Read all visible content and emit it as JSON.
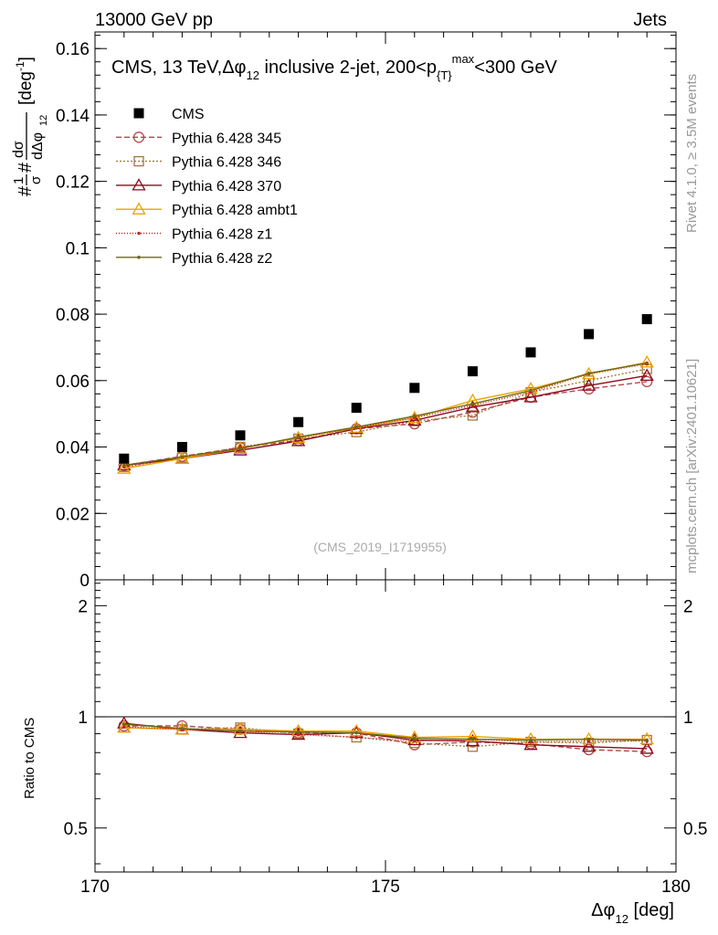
{
  "header": {
    "left": "13000 GeV pp",
    "right": "Jets",
    "side_top": "Rivet 4.1.0, ≥ 3.5M events",
    "side_bottom": "mcplots.cern.ch [arXiv:2401.10621]",
    "watermark": "(CMS_2019_I1719955)"
  },
  "chart_data": {
    "type": "line",
    "title_parts": {
      "pre": "CMS, 13 TeV,",
      "phi": "Δφ",
      "phi_sub": "12",
      "mid": " inclusive 2-jet, 200<p",
      "sub_T": "{T}",
      "sup_max": "max",
      "post": "<300 GeV"
    },
    "xlabel": "Δφ",
    "xlabel_sub": "12",
    "xlabel_unit": " [deg]",
    "ylabel_parts": {
      "hash1": "#",
      "one": "1",
      "sigma": "σ",
      "hash2": "#",
      "dsigma": "dσ",
      "dphi": "dΔφ",
      "dphi_sub": "12",
      "unit": "[deg",
      "unit_sup": "-1",
      "unit_close": "]"
    },
    "ratio_ylabel": "Ratio to CMS",
    "xlim": [
      170,
      180
    ],
    "ylim": [
      0,
      0.165
    ],
    "ratio_ylim": [
      0.38,
      2.35
    ],
    "x_ticks": [
      170,
      175,
      180
    ],
    "y_ticks": [
      0,
      0.02,
      0.04,
      0.06,
      0.08,
      0.1,
      0.12,
      0.14,
      0.16
    ],
    "y_tick_labels": [
      "0",
      "0.02",
      "0.04",
      "0.06",
      "0.08",
      "0.1",
      "0.12",
      "0.14",
      "0.16"
    ],
    "ratio_ticks": [
      0.5,
      1,
      2
    ],
    "ratio_tick_labels": [
      "0.5",
      "1",
      "2"
    ],
    "x": [
      170.5,
      171.5,
      172.5,
      173.5,
      174.5,
      175.5,
      176.5,
      177.5,
      178.5,
      179.5
    ],
    "data": {
      "name": "CMS",
      "values": [
        0.0365,
        0.04,
        0.0435,
        0.0475,
        0.0518,
        0.0578,
        0.0628,
        0.0685,
        0.074,
        0.0785
      ]
    },
    "series": [
      {
        "name": "Pythia 6.428 345",
        "color": "#b5474b",
        "dash": "6,3",
        "marker": "circle",
        "values": [
          0.0345,
          0.0372,
          0.0398,
          0.042,
          0.0455,
          0.047,
          0.0505,
          0.055,
          0.0575,
          0.0597
        ]
      },
      {
        "name": "Pythia 6.428 346",
        "color": "#a37a3b",
        "dash": "2,2",
        "marker": "square",
        "values": [
          0.034,
          0.0368,
          0.04,
          0.0425,
          0.0445,
          0.0478,
          0.0495,
          0.0565,
          0.06,
          0.0635
        ]
      },
      {
        "name": "Pythia 6.428 370",
        "color": "#8b0a1e",
        "dash": "",
        "marker": "triangle",
        "values": [
          0.0345,
          0.0365,
          0.039,
          0.0418,
          0.0455,
          0.048,
          0.052,
          0.055,
          0.0585,
          0.0615
        ]
      },
      {
        "name": "Pythia 6.428 ambt1",
        "color": "#f0a000",
        "dash": "",
        "marker": "triangle",
        "values": [
          0.0335,
          0.0365,
          0.0395,
          0.0428,
          0.0458,
          0.0488,
          0.054,
          0.0575,
          0.062,
          0.0655
        ]
      },
      {
        "name": "Pythia 6.428 z1",
        "color": "#cc2020",
        "dash": "1,2",
        "marker": "dot",
        "values": [
          0.034,
          0.037,
          0.0398,
          0.0428,
          0.0458,
          0.0488,
          0.0525,
          0.0565,
          0.062,
          0.065
        ]
      },
      {
        "name": "Pythia 6.428 z2",
        "color": "#6b6b10",
        "dash": "",
        "marker": "dot",
        "values": [
          0.0345,
          0.037,
          0.0395,
          0.043,
          0.046,
          0.0493,
          0.053,
          0.057,
          0.0622,
          0.0653
        ]
      }
    ],
    "ratios": [
      [
        0.945,
        0.945,
        0.925,
        0.905,
        0.905,
        0.84,
        0.855,
        0.845,
        0.815,
        0.805
      ],
      [
        0.935,
        0.925,
        0.935,
        0.9,
        0.88,
        0.85,
        0.83,
        0.855,
        0.85,
        0.865
      ],
      [
        0.96,
        0.925,
        0.905,
        0.895,
        0.905,
        0.865,
        0.86,
        0.84,
        0.83,
        0.82
      ],
      [
        0.935,
        0.925,
        0.925,
        0.915,
        0.915,
        0.88,
        0.885,
        0.87,
        0.87,
        0.87
      ],
      [
        0.94,
        0.925,
        0.915,
        0.895,
        0.88,
        0.86,
        0.87,
        0.855,
        0.86,
        0.86
      ],
      [
        0.955,
        0.93,
        0.915,
        0.91,
        0.905,
        0.875,
        0.87,
        0.865,
        0.87,
        0.865
      ]
    ]
  }
}
